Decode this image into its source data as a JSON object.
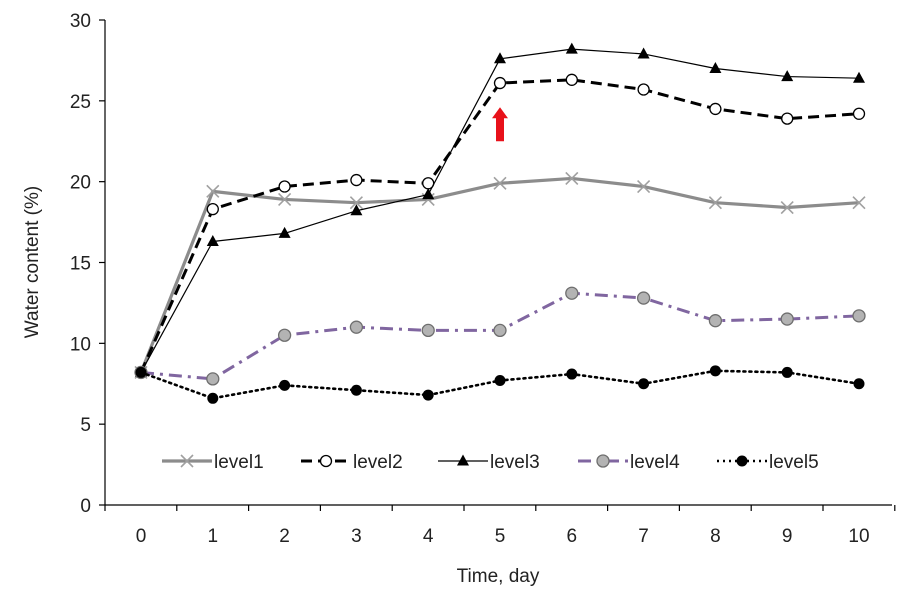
{
  "chart_data": {
    "type": "line",
    "title": "",
    "xlabel": "Time, day",
    "ylabel": "Water content (%)",
    "xlim": [
      0,
      10
    ],
    "ylim": [
      0,
      30
    ],
    "x": [
      0,
      1,
      2,
      3,
      4,
      5,
      6,
      7,
      8,
      9,
      10
    ],
    "x_ticks": [
      "0",
      "1",
      "2",
      "3",
      "4",
      "5",
      "6",
      "7",
      "8",
      "9",
      "10"
    ],
    "y_ticks": [
      "0",
      "5",
      "10",
      "15",
      "20",
      "25",
      "30"
    ],
    "grid": false,
    "legend_position": "bottom-inside",
    "series": [
      {
        "name": "level1",
        "values": [
          8.2,
          19.4,
          18.9,
          18.7,
          18.9,
          19.9,
          20.2,
          19.7,
          18.7,
          18.4,
          18.7
        ],
        "color": "#8c8c8c",
        "marker": "x",
        "line": "solid"
      },
      {
        "name": "level2",
        "values": [
          8.2,
          18.3,
          19.7,
          20.1,
          19.9,
          26.1,
          26.3,
          25.7,
          24.5,
          23.9,
          24.2
        ],
        "color": "#000000",
        "marker": "open-circle",
        "line": "dashed"
      },
      {
        "name": "level3",
        "values": [
          8.2,
          16.3,
          16.8,
          18.2,
          19.2,
          27.6,
          28.2,
          27.9,
          27.0,
          26.5,
          26.4
        ],
        "color": "#000000",
        "marker": "triangle",
        "line": "thin-solid"
      },
      {
        "name": "level4",
        "values": [
          8.2,
          7.8,
          10.5,
          11.0,
          10.8,
          10.8,
          13.1,
          12.8,
          11.4,
          11.5,
          11.7
        ],
        "color": "#8066a0",
        "marker": "grey-circle",
        "line": "dash-dot"
      },
      {
        "name": "level5",
        "values": [
          8.2,
          6.6,
          7.4,
          7.1,
          6.8,
          7.7,
          8.1,
          7.5,
          8.3,
          8.2,
          7.5
        ],
        "color": "#000000",
        "marker": "filled-circle",
        "line": "dotted"
      }
    ],
    "annotations": [
      {
        "type": "arrow",
        "direction": "up",
        "color": "#e8111a",
        "x": 5,
        "y_range": [
          22.5,
          24.6
        ]
      }
    ]
  }
}
